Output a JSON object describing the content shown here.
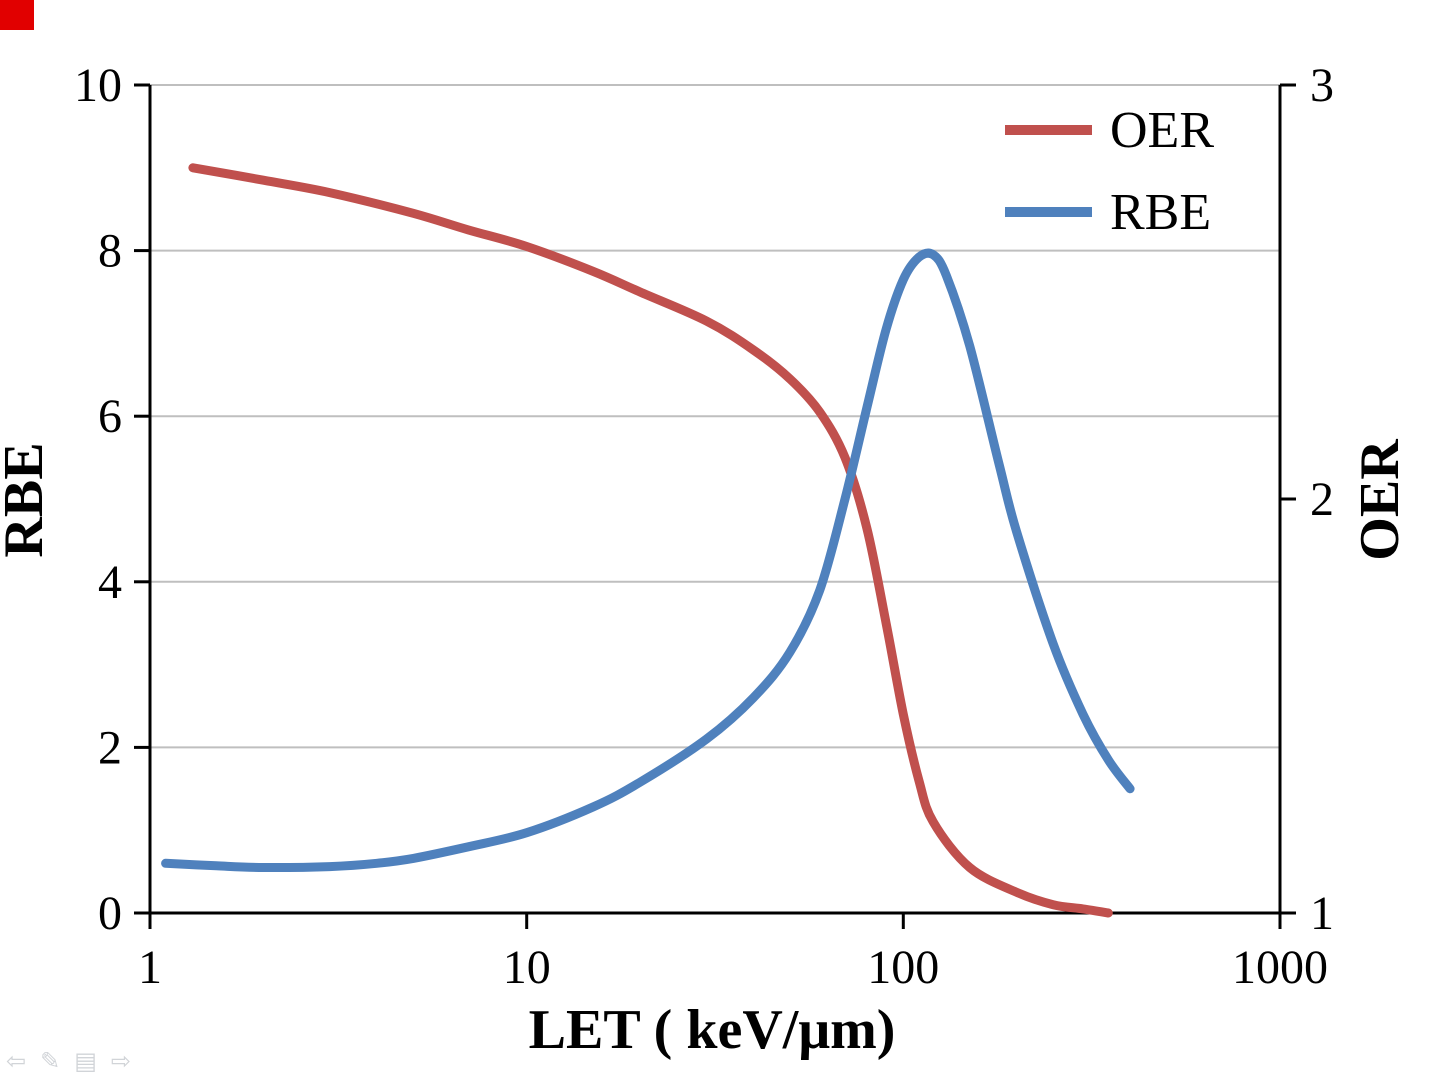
{
  "page": {
    "background": "#ffffff"
  },
  "decorations": {
    "corner_mark_color": "#e10000"
  },
  "nav_controls": {
    "items": [
      {
        "name": "previous-slide",
        "glyph": "⇦"
      },
      {
        "name": "pen-tool",
        "glyph": "✎"
      },
      {
        "name": "slide-menu",
        "glyph": "▤"
      },
      {
        "name": "next-slide",
        "glyph": "⇨"
      }
    ]
  },
  "chart_data": {
    "type": "line",
    "title": "",
    "x_axis": {
      "label": "LET ( keV/μm)",
      "scale": "log",
      "min": 1,
      "max": 1000,
      "ticks": [
        1,
        10,
        100,
        1000
      ]
    },
    "y_left": {
      "label": "RBE",
      "min": 0,
      "max": 10,
      "ticks": [
        0,
        2,
        4,
        6,
        8,
        10
      ]
    },
    "y_right": {
      "label": "OER",
      "min": 1,
      "max": 3,
      "ticks": [
        1,
        2,
        3
      ]
    },
    "grid": true,
    "grid_color": "#bfbfbf",
    "axis_color": "#000000",
    "legend": {
      "position": "top-right",
      "entries": [
        {
          "label": "OER",
          "color": "#C0504D"
        },
        {
          "label": "RBE",
          "color": "#4F81BD"
        }
      ]
    },
    "series": [
      {
        "name": "OER",
        "axis": "right",
        "color": "#C0504D",
        "points": [
          [
            1.3,
            2.8
          ],
          [
            2,
            2.77
          ],
          [
            3,
            2.74
          ],
          [
            5,
            2.69
          ],
          [
            7,
            2.65
          ],
          [
            10,
            2.61
          ],
          [
            15,
            2.55
          ],
          [
            20,
            2.5
          ],
          [
            30,
            2.43
          ],
          [
            40,
            2.36
          ],
          [
            50,
            2.29
          ],
          [
            60,
            2.21
          ],
          [
            70,
            2.1
          ],
          [
            80,
            1.93
          ],
          [
            90,
            1.7
          ],
          [
            100,
            1.48
          ],
          [
            110,
            1.32
          ],
          [
            120,
            1.22
          ],
          [
            150,
            1.11
          ],
          [
            200,
            1.05
          ],
          [
            250,
            1.02
          ],
          [
            300,
            1.01
          ],
          [
            350,
            1.0
          ]
        ]
      },
      {
        "name": "RBE",
        "axis": "left",
        "color": "#4F81BD",
        "points": [
          [
            1.1,
            0.6
          ],
          [
            1.5,
            0.57
          ],
          [
            2,
            0.55
          ],
          [
            3,
            0.56
          ],
          [
            4,
            0.6
          ],
          [
            5,
            0.66
          ],
          [
            7,
            0.8
          ],
          [
            10,
            0.97
          ],
          [
            15,
            1.28
          ],
          [
            20,
            1.58
          ],
          [
            30,
            2.1
          ],
          [
            40,
            2.6
          ],
          [
            50,
            3.15
          ],
          [
            60,
            3.9
          ],
          [
            70,
            5.0
          ],
          [
            80,
            6.1
          ],
          [
            90,
            7.05
          ],
          [
            100,
            7.65
          ],
          [
            110,
            7.92
          ],
          [
            120,
            7.95
          ],
          [
            130,
            7.7
          ],
          [
            150,
            6.85
          ],
          [
            180,
            5.4
          ],
          [
            200,
            4.6
          ],
          [
            250,
            3.25
          ],
          [
            300,
            2.4
          ],
          [
            350,
            1.85
          ],
          [
            400,
            1.5
          ]
        ]
      }
    ]
  }
}
